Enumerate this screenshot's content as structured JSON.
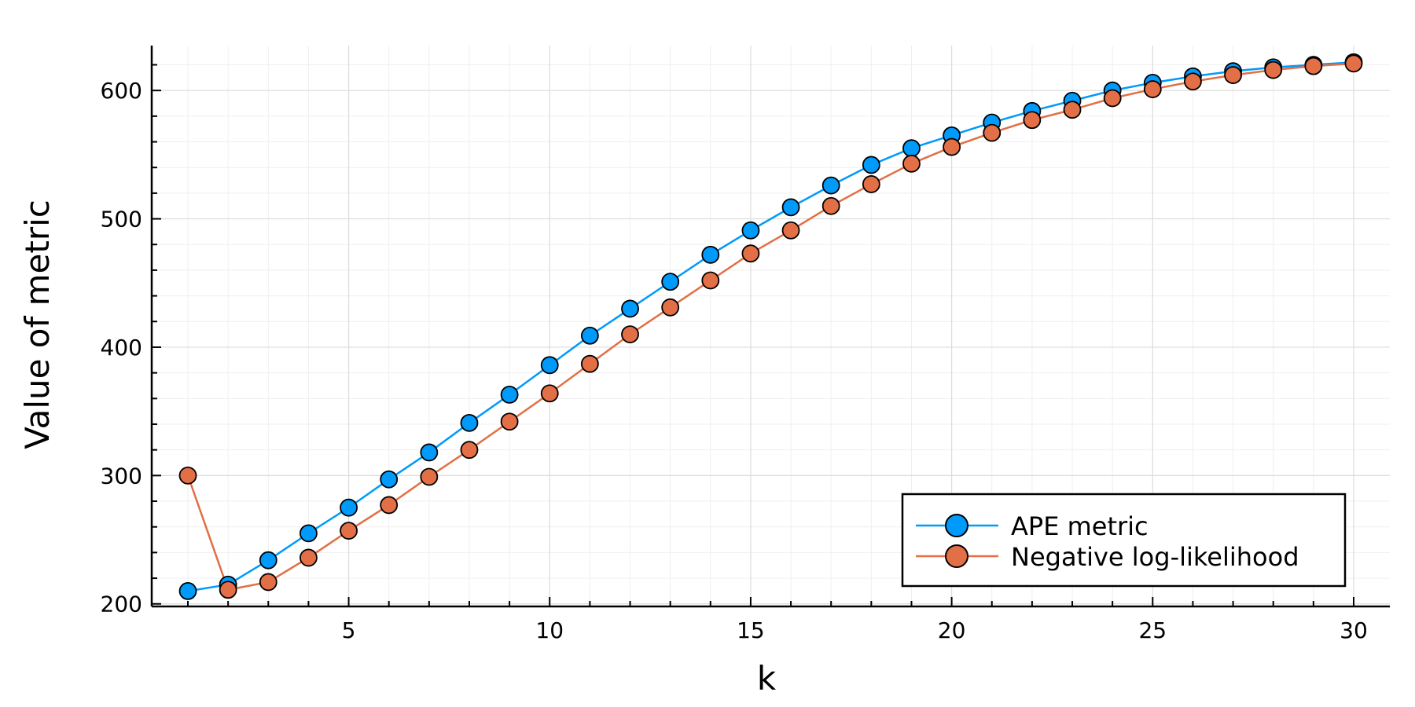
{
  "chart_data": {
    "type": "line",
    "title": "",
    "xlabel": "k",
    "ylabel": "Value of metric",
    "xlim": [
      0.1,
      30.9
    ],
    "ylim": [
      198,
      635
    ],
    "xticks": [
      5,
      10,
      15,
      20,
      25,
      30
    ],
    "yticks": [
      200,
      300,
      400,
      500,
      600
    ],
    "grid": true,
    "legend_position": "bottom-right",
    "x": [
      1,
      2,
      3,
      4,
      5,
      6,
      7,
      8,
      9,
      10,
      11,
      12,
      13,
      14,
      15,
      16,
      17,
      18,
      19,
      20,
      21,
      22,
      23,
      24,
      25,
      26,
      27,
      28,
      29,
      30
    ],
    "series": [
      {
        "name": "APE metric",
        "color": "#009AFA",
        "values": [
          210,
          215,
          234,
          255,
          275,
          297,
          318,
          341,
          363,
          386,
          409,
          430,
          451,
          472,
          491,
          509,
          526,
          542,
          555,
          565,
          575,
          584,
          592,
          600,
          606,
          611,
          615,
          618,
          620,
          622
        ]
      },
      {
        "name": "Negative log-likelihood",
        "color": "#E26F46",
        "values": [
          300,
          211,
          217,
          236,
          257,
          277,
          299,
          320,
          342,
          364,
          387,
          410,
          431,
          452,
          473,
          491,
          510,
          527,
          543,
          556,
          567,
          577,
          585,
          594,
          601,
          607,
          612,
          616,
          619,
          621
        ]
      }
    ]
  }
}
